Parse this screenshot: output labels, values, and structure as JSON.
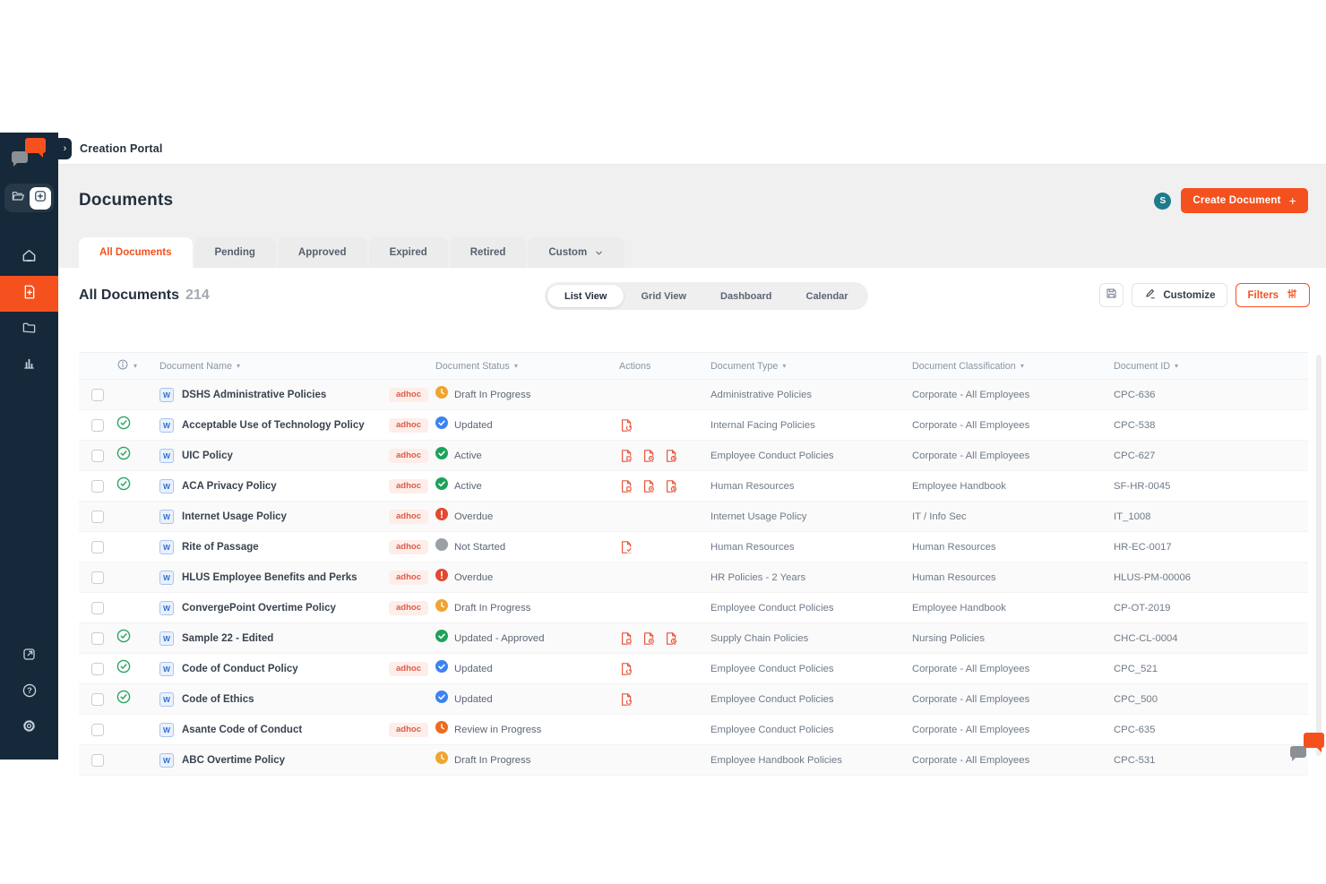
{
  "colors": {
    "accent_orange": "#f4511f",
    "sidebar_navy": "#15293a",
    "teal_sharepoint": "#1d7b8a",
    "adhoc_red": "#e05a48",
    "status_amber": "#f0a431",
    "status_blue": "#3c82f4",
    "status_green": "#1fa15b",
    "status_red": "#e2492f",
    "status_gray": "#9aa0a6",
    "status_deep_orange": "#ef6a20",
    "action_icon_red": "#e8553d"
  },
  "header": {
    "portal_title": "Creation Portal"
  },
  "sidebar": {
    "logo_icon": "chat-bubbles-logo",
    "toggle": [
      {
        "icon": "folder-open-icon",
        "active": false
      },
      {
        "icon": "plus-square-icon",
        "active": true
      }
    ],
    "nav": [
      {
        "icon": "home-icon",
        "active": false
      },
      {
        "icon": "document-plus-icon",
        "active": true
      },
      {
        "icon": "folder-icon",
        "active": false
      },
      {
        "icon": "bar-chart-icon",
        "active": false
      }
    ],
    "bottom": [
      {
        "icon": "external-link-icon"
      },
      {
        "icon": "help-icon"
      },
      {
        "icon": "gear-icon"
      }
    ]
  },
  "page": {
    "title": "Documents",
    "sharepoint_icon": "sharepoint-icon",
    "sharepoint_letter": "S",
    "create_button": "Create Document",
    "tabs": [
      {
        "label": "All Documents",
        "active": true
      },
      {
        "label": "Pending",
        "active": false
      },
      {
        "label": "Approved",
        "active": false
      },
      {
        "label": "Expired",
        "active": false
      },
      {
        "label": "Retired",
        "active": false
      },
      {
        "label": "Custom",
        "active": false,
        "dropdown": true
      }
    ],
    "section_title": "All Documents",
    "count": "214",
    "views": [
      {
        "label": "List View",
        "active": true
      },
      {
        "label": "Grid View",
        "active": false
      },
      {
        "label": "Dashboard",
        "active": false
      },
      {
        "label": "Calendar",
        "active": false
      }
    ],
    "save_icon": "save-icon",
    "customize_label": "Customize",
    "filters_label": "Filters"
  },
  "table": {
    "columns": [
      {
        "key": "select",
        "label": ""
      },
      {
        "key": "flag",
        "label": "",
        "icon": "info-icon",
        "sortable": true
      },
      {
        "key": "name",
        "label": "Document Name",
        "sortable": true
      },
      {
        "key": "adhoc",
        "label": ""
      },
      {
        "key": "status",
        "label": "Document Status",
        "sortable": true
      },
      {
        "key": "actions",
        "label": "Actions",
        "sortable": false
      },
      {
        "key": "type",
        "label": "Document Type",
        "sortable": true
      },
      {
        "key": "classification",
        "label": "Document Classification",
        "sortable": true
      },
      {
        "key": "id",
        "label": "Document ID",
        "sortable": true
      }
    ],
    "adhoc_label": "adhoc",
    "rows": [
      {
        "name": "DSHS Administrative Policies",
        "approved": false,
        "adhoc": true,
        "status": {
          "label": "Draft In Progress",
          "icon": "clock-icon",
          "color": "#f0a431"
        },
        "actions": [],
        "type": "Administrative Policies",
        "classification": "Corporate - All Employees",
        "id": "CPC-636"
      },
      {
        "name": "Acceptable Use of Technology Policy",
        "approved": true,
        "adhoc": true,
        "status": {
          "label": "Updated",
          "icon": "check-icon",
          "color": "#3c82f4"
        },
        "actions": [
          "document-refresh-icon"
        ],
        "type": "Internal Facing Policies",
        "classification": "Corporate - All Employees",
        "id": "CPC-538"
      },
      {
        "name": "UIC Policy",
        "approved": true,
        "adhoc": true,
        "status": {
          "label": "Active",
          "icon": "check-icon",
          "color": "#1fa15b"
        },
        "actions": [
          "document-duplicate-icon",
          "document-target-icon",
          "document-history-icon"
        ],
        "type": "Employee Conduct Policies",
        "classification": "Corporate - All Employees",
        "id": "CPC-627"
      },
      {
        "name": "ACA Privacy Policy",
        "approved": true,
        "adhoc": true,
        "status": {
          "label": "Active",
          "icon": "check-icon",
          "color": "#1fa15b"
        },
        "actions": [
          "document-duplicate-icon",
          "document-target-icon",
          "document-history-icon"
        ],
        "type": "Human Resources",
        "classification": "Employee Handbook",
        "id": "SF-HR-0045"
      },
      {
        "name": "Internet Usage Policy",
        "approved": false,
        "adhoc": true,
        "status": {
          "label": "Overdue",
          "icon": "exclaim-icon",
          "color": "#e2492f"
        },
        "actions": [],
        "type": "Internet Usage Policy",
        "classification": "IT / Info Sec",
        "id": "IT_1008"
      },
      {
        "name": "Rite of Passage",
        "approved": false,
        "adhoc": true,
        "status": {
          "label": "Not Started",
          "icon": "dot-icon",
          "color": "#9aa0a6"
        },
        "actions": [
          "document-check-icon"
        ],
        "type": "Human Resources",
        "classification": "Human Resources",
        "id": "HR-EC-0017"
      },
      {
        "name": "HLUS Employee Benefits and Perks",
        "approved": false,
        "adhoc": true,
        "status": {
          "label": "Overdue",
          "icon": "exclaim-icon",
          "color": "#e2492f"
        },
        "actions": [],
        "type": "HR Policies - 2 Years",
        "classification": "Human Resources",
        "id": "HLUS-PM-00006"
      },
      {
        "name": "ConvergePoint Overtime Policy",
        "approved": false,
        "adhoc": true,
        "status": {
          "label": "Draft In Progress",
          "icon": "clock-icon",
          "color": "#f0a431"
        },
        "actions": [],
        "type": "Employee Conduct Policies",
        "classification": "Employee Handbook",
        "id": "CP-OT-2019"
      },
      {
        "name": "Sample 22 - Edited",
        "approved": true,
        "adhoc": false,
        "status": {
          "label": "Updated - Approved",
          "icon": "check-icon",
          "color": "#1fa15b"
        },
        "actions": [
          "document-duplicate-icon",
          "document-target-icon",
          "document-history-icon"
        ],
        "type": "Supply Chain Policies",
        "classification": "Nursing Policies",
        "id": "CHC-CL-0004"
      },
      {
        "name": "Code of Conduct Policy",
        "approved": true,
        "adhoc": true,
        "status": {
          "label": "Updated",
          "icon": "check-icon",
          "color": "#3c82f4"
        },
        "actions": [
          "document-refresh-icon"
        ],
        "type": "Employee Conduct Policies",
        "classification": "Corporate - All Employees",
        "id": "CPC_521"
      },
      {
        "name": "Code of Ethics",
        "approved": true,
        "adhoc": false,
        "status": {
          "label": "Updated",
          "icon": "check-icon",
          "color": "#3c82f4"
        },
        "actions": [
          "document-refresh-icon"
        ],
        "type": "Employee Conduct Policies",
        "classification": "Corporate - All Employees",
        "id": "CPC_500"
      },
      {
        "name": "Asante Code of Conduct",
        "approved": false,
        "adhoc": true,
        "status": {
          "label": "Review in Progress",
          "icon": "clock-icon",
          "color": "#ef6a20"
        },
        "actions": [],
        "type": "Employee Conduct Policies",
        "classification": "Corporate - All Employees",
        "id": "CPC-635"
      },
      {
        "name": "ABC Overtime Policy",
        "approved": false,
        "adhoc": false,
        "status": {
          "label": "Draft In Progress",
          "icon": "clock-icon",
          "color": "#f0a431"
        },
        "actions": [],
        "type": "Employee Handbook Policies",
        "classification": "Corporate - All Employees",
        "id": "CPC-531"
      }
    ]
  },
  "chat_widget_icon": "chat-bubbles-logo"
}
